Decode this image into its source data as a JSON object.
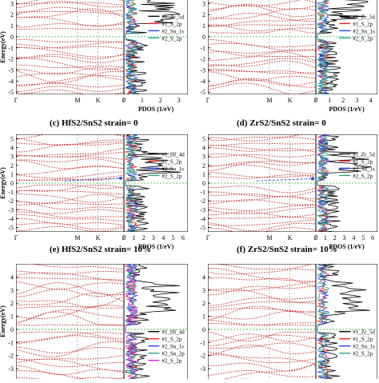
{
  "figure": {
    "panel_c_caption": "(c) HfS2/SnS2  strain= 0",
    "panel_d_caption": "(d) ZrS2/SnS2  strain= 0",
    "panel_e_caption": "(e) HfS2/SnS2  strain= 10%",
    "panel_f_caption": "(f) ZrS2/SnS2  strain= 10%"
  },
  "chart_data": [
    {
      "panel": "a",
      "type": "line",
      "ylabel": "Energy(eV)",
      "xlabel": "PDOS (1/eV)",
      "ylim": [
        -5.2,
        3.6
      ],
      "yticks": [
        -5,
        -4,
        -3,
        -2,
        -1,
        0,
        1,
        2,
        3
      ],
      "kpath": [
        "Γ",
        "M",
        "K",
        "Γ"
      ],
      "pdos_xticks": [
        "0",
        "1",
        "2",
        "3"
      ],
      "legend": [
        "#1_Zr_5d",
        "#1_S_2p",
        "#2_Sn_1s",
        "#2_S_2p"
      ]
    },
    {
      "panel": "b",
      "type": "line",
      "ylabel": "",
      "xlabel": "PDOS (1/eV)",
      "ylim": [
        -5.2,
        3.6
      ],
      "yticks": [
        -5,
        -4,
        -3,
        -2,
        -1,
        0,
        1,
        2,
        3
      ],
      "kpath": [
        "Γ",
        "M",
        "K",
        "Γ"
      ],
      "pdos_xticks": [
        "0",
        "1",
        "2",
        "3",
        "4"
      ],
      "legend": [
        "#1_Zr_5d",
        "#1_S_2p",
        "#2_Sn_1s",
        "#2_S_2p"
      ]
    },
    {
      "panel": "c",
      "type": "line",
      "ylabel": "Energy(eV)",
      "xlabel": "PDOS (1/eV)",
      "ylim": [
        -5.5,
        5.5
      ],
      "yticks": [
        -5,
        -4,
        -3,
        -2,
        -1,
        0,
        1,
        2,
        3,
        4,
        5
      ],
      "kpath": [
        "Γ",
        "M",
        "K",
        "Γ"
      ],
      "pdos_xticks": [
        "0",
        "1",
        "2",
        "3",
        "4",
        "5",
        "6"
      ],
      "legend": [
        "#1_Hf_4d",
        "#1_S_2p",
        "#2_Sn_1s",
        "#2_S_2p"
      ],
      "gap_arrow": [
        0.25,
        0.55
      ]
    },
    {
      "panel": "d",
      "type": "line",
      "ylabel": "",
      "xlabel": "PDOS (1/eV)",
      "ylim": [
        -5.5,
        5.5
      ],
      "yticks": [
        -5,
        -4,
        -3,
        -2,
        -1,
        0,
        1,
        2,
        3,
        4,
        5
      ],
      "kpath": [
        "Γ",
        "M",
        "K",
        "Γ"
      ],
      "pdos_xticks": [
        "0",
        "1",
        "2",
        "3",
        "4",
        "5",
        "6"
      ],
      "legend": [
        "#1_Zr_5d",
        "#1_S_2p",
        "#2_Sn_1s",
        "#2_S_2p"
      ],
      "gap_arrow": [
        0.25,
        0.5
      ]
    },
    {
      "panel": "e",
      "type": "line",
      "ylabel": "Energy(eV)",
      "xlabel": "",
      "ylim": [
        -4.4,
        5
      ],
      "yticks": [
        -4,
        -3,
        -2,
        -1,
        0,
        1,
        2,
        3,
        4
      ],
      "kpath": [],
      "pdos_xticks": [],
      "legend": [
        "#1_Hf_4d",
        "#1_S_2p",
        "#2_Sn_1s",
        "#2_Sn_2p",
        "#2_S_2p"
      ]
    },
    {
      "panel": "f",
      "type": "line",
      "ylabel": "",
      "xlabel": "",
      "ylim": [
        -4.4,
        5
      ],
      "yticks": [
        -4,
        -3,
        -2,
        -1,
        0,
        1,
        2,
        3,
        4
      ],
      "kpath": [],
      "pdos_xticks": [],
      "legend": [
        "#1_Zr_5d",
        "#1_S_2p",
        "#2_Sn_1s",
        "#2_S_2p"
      ]
    }
  ],
  "colors": {
    "bands": "#cc2222",
    "fermi": "#33bb33",
    "gap_arrow": "#2255dd",
    "legend_lines": [
      "#000000",
      "#ff2222",
      "#2244ff",
      "#22aa88",
      "#dd22dd"
    ]
  }
}
